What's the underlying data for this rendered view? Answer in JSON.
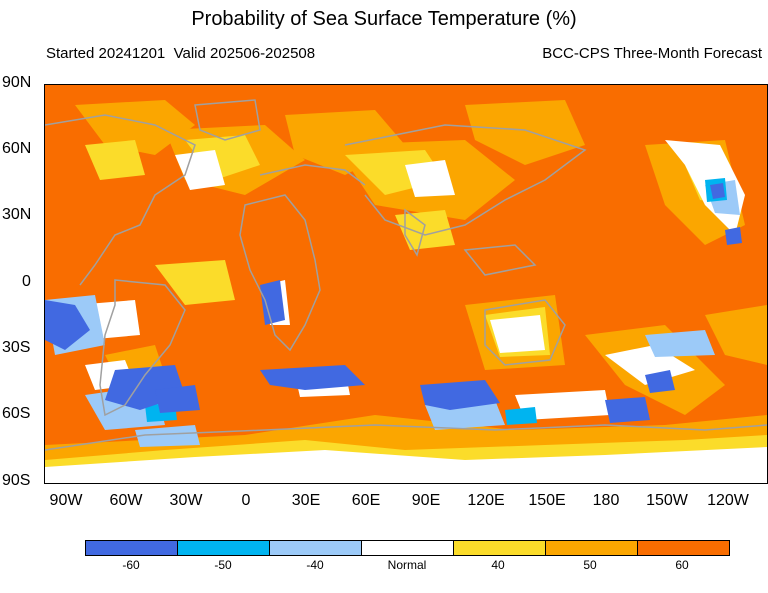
{
  "title": "Probability of Sea Surface Temperature (%)",
  "subtitle_left": "Started 20241201  Valid 202506-202508",
  "subtitle_right": "BCC-CPS Three-Month Forecast",
  "y_axis_labels": [
    "90N",
    "60N",
    "30N",
    "0",
    "30S",
    "60S",
    "90S"
  ],
  "x_axis_labels": [
    "90W",
    "60W",
    "30W",
    "0",
    "30E",
    "60E",
    "90E",
    "120E",
    "150E",
    "180",
    "150W",
    "120W"
  ],
  "colorbar": {
    "labels": [
      "-60",
      "-50",
      "-40",
      "Normal",
      "40",
      "50",
      "60"
    ],
    "colors": [
      "#4169e1",
      "#00b4f0",
      "#9ccaf8",
      "#ffffff",
      "#fbdc2a",
      "#fba600",
      "#f96d00"
    ]
  },
  "colors": {
    "above_60": "#f96d00",
    "above_50": "#fba600",
    "above_40": "#fbdc2a",
    "normal": "#ffffff",
    "below_40": "#9ccaf8",
    "below_50": "#00b4f0",
    "below_60": "#4169e1",
    "coastline": "#a0a0a0"
  }
}
